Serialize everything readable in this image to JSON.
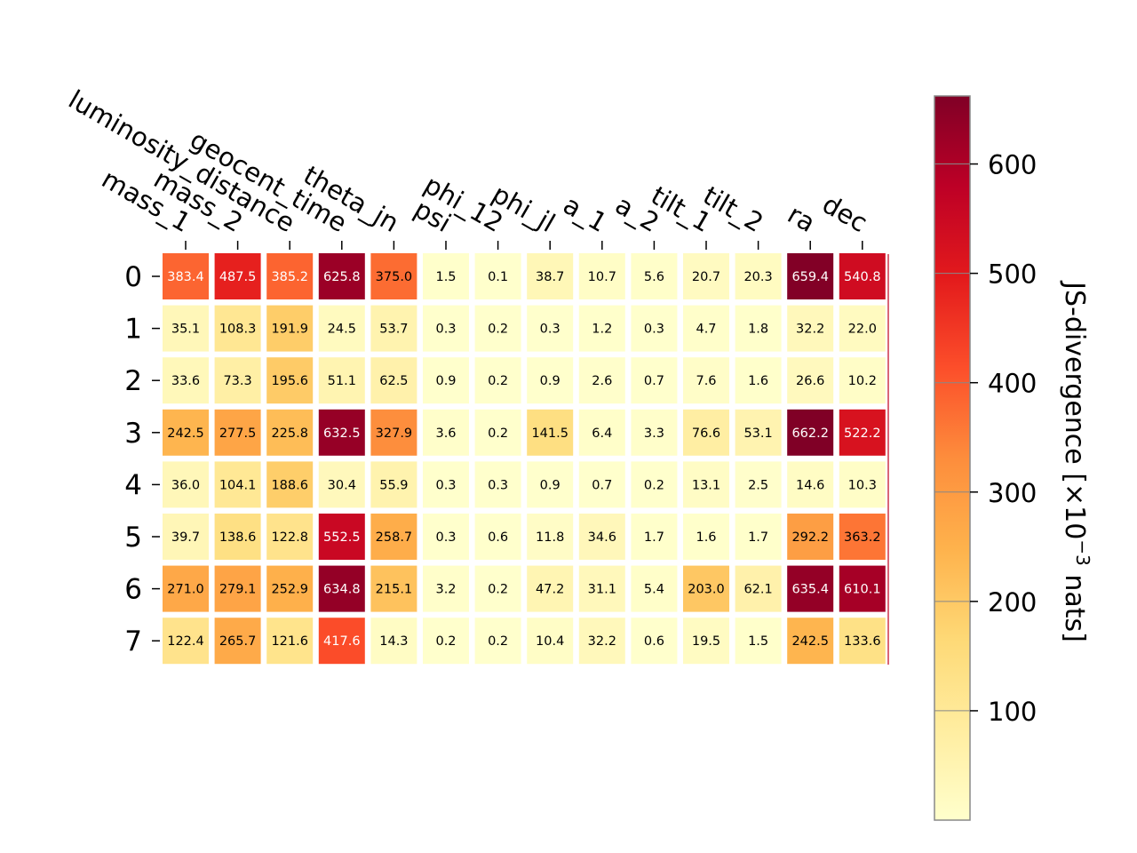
{
  "chart_data": {
    "type": "heatmap",
    "x_labels": [
      "mass_1",
      "mass_2",
      "luminosity_distance",
      "geocent_time",
      "theta_jn",
      "psi",
      "phi_12",
      "phi_jl",
      "a_1",
      "a_2",
      "tilt_1",
      "tilt_2",
      "ra",
      "dec"
    ],
    "y_labels": [
      "0",
      "1",
      "2",
      "3",
      "4",
      "5",
      "6",
      "7"
    ],
    "values": [
      [
        383.4,
        487.5,
        385.2,
        625.8,
        375.0,
        1.5,
        0.1,
        38.7,
        10.7,
        5.6,
        20.7,
        20.3,
        659.4,
        540.8
      ],
      [
        35.1,
        108.3,
        191.9,
        24.5,
        53.7,
        0.3,
        0.2,
        0.3,
        1.2,
        0.3,
        4.7,
        1.8,
        32.2,
        22.0
      ],
      [
        33.6,
        73.3,
        195.6,
        51.1,
        62.5,
        0.9,
        0.2,
        0.9,
        2.6,
        0.7,
        7.6,
        1.6,
        26.6,
        10.2
      ],
      [
        242.5,
        277.5,
        225.8,
        632.5,
        327.9,
        3.6,
        0.2,
        141.5,
        6.4,
        3.3,
        76.6,
        53.1,
        662.2,
        522.2
      ],
      [
        36.0,
        104.1,
        188.6,
        30.4,
        55.9,
        0.3,
        0.3,
        0.9,
        0.7,
        0.2,
        13.1,
        2.5,
        14.6,
        10.3
      ],
      [
        39.7,
        138.6,
        122.8,
        552.5,
        258.7,
        0.3,
        0.6,
        11.8,
        34.6,
        1.7,
        1.6,
        1.7,
        292.2,
        363.2
      ],
      [
        271.0,
        279.1,
        252.9,
        634.8,
        215.1,
        3.2,
        0.2,
        47.2,
        31.1,
        5.4,
        203.0,
        62.1,
        635.4,
        610.1
      ],
      [
        122.4,
        265.7,
        121.6,
        417.6,
        14.3,
        0.2,
        0.2,
        10.4,
        32.2,
        0.6,
        19.5,
        1.5,
        242.5,
        133.6
      ]
    ],
    "colormap": "YlOrRd",
    "vmin": 0,
    "vmax": 662.2,
    "colorbar": {
      "label": "JS-divergence [×10",
      "label_exponent": "−3",
      "label_suffix": " nats]",
      "ticks": [
        100,
        200,
        300,
        400,
        500,
        600
      ]
    }
  }
}
